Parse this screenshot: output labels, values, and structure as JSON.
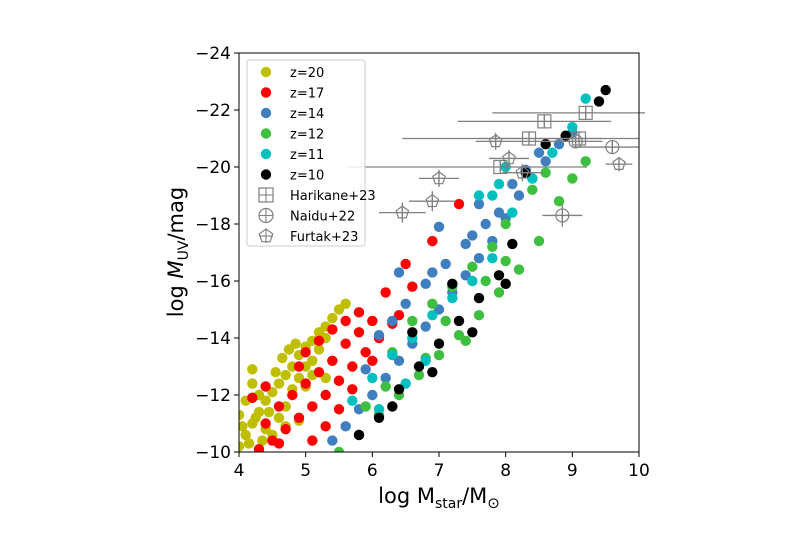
{
  "chart_data": {
    "type": "scatter",
    "xlabel": "log M",
    "xlabel_sub": "star",
    "xlabel_tail": "/M",
    "xlabel_sun": "⊙",
    "ylabel": "log ",
    "ylabel_sym": "M",
    "ylabel_sub": "UV",
    "ylabel_tail": "/mag",
    "xlim": [
      4,
      10
    ],
    "ylim": [
      -10,
      -24
    ],
    "y_inverted": true,
    "grid": false,
    "legend_position": "upper-left",
    "xticks": [
      "4",
      "5",
      "6",
      "7",
      "8",
      "9",
      "10"
    ],
    "xtick_values": [
      4,
      5,
      6,
      7,
      8,
      9,
      10
    ],
    "yticks": [
      "−10",
      "−12",
      "−14",
      "−16",
      "−18",
      "−20",
      "−22",
      "−24"
    ],
    "ytick_values": [
      -10,
      -12,
      -14,
      -16,
      -18,
      -20,
      -22,
      -24
    ],
    "simulated_series": [
      {
        "name": "z=20",
        "color": "#bfbf00",
        "points": [
          [
            4.0,
            -10.2
          ],
          [
            4.1,
            -10.6
          ],
          [
            4.2,
            -11.0
          ],
          [
            4.3,
            -11.4
          ],
          [
            4.4,
            -11.8
          ],
          [
            4.5,
            -12.1
          ],
          [
            4.6,
            -12.4
          ],
          [
            4.7,
            -12.7
          ],
          [
            4.8,
            -13.0
          ],
          [
            4.9,
            -13.4
          ],
          [
            5.0,
            -13.7
          ],
          [
            5.1,
            -13.9
          ],
          [
            5.2,
            -14.2
          ],
          [
            5.3,
            -14.4
          ],
          [
            5.4,
            -14.7
          ],
          [
            5.5,
            -15.0
          ],
          [
            5.6,
            -15.2
          ],
          [
            4.0,
            -11.3
          ],
          [
            4.1,
            -11.8
          ],
          [
            4.2,
            -12.4
          ],
          [
            4.3,
            -12.0
          ],
          [
            4.4,
            -10.8
          ],
          [
            4.5,
            -10.6
          ],
          [
            4.6,
            -11.2
          ],
          [
            4.7,
            -11.6
          ],
          [
            4.8,
            -12.2
          ],
          [
            4.9,
            -12.6
          ],
          [
            5.0,
            -13.0
          ],
          [
            5.1,
            -13.2
          ],
          [
            5.2,
            -13.6
          ],
          [
            5.3,
            -14.0
          ],
          [
            4.15,
            -10.3
          ],
          [
            4.35,
            -10.4
          ],
          [
            4.55,
            -12.8
          ],
          [
            4.65,
            -13.3
          ],
          [
            4.75,
            -13.6
          ],
          [
            4.85,
            -13.8
          ],
          [
            4.05,
            -10.9
          ],
          [
            4.25,
            -11.2
          ],
          [
            4.45,
            -11.4
          ],
          [
            4.7,
            -10.9
          ],
          [
            5.0,
            -12.3
          ],
          [
            5.1,
            -12.7
          ],
          [
            4.2,
            -12.9
          ],
          [
            5.3,
            -12.6
          ],
          [
            4.9,
            -11.1
          ]
        ]
      },
      {
        "name": "z=17",
        "color": "#ff0000",
        "points": [
          [
            4.3,
            -10.1
          ],
          [
            4.5,
            -10.4
          ],
          [
            4.7,
            -10.8
          ],
          [
            4.9,
            -11.2
          ],
          [
            5.1,
            -11.6
          ],
          [
            5.3,
            -12.0
          ],
          [
            5.5,
            -12.5
          ],
          [
            5.7,
            -13.0
          ],
          [
            5.9,
            -13.5
          ],
          [
            6.1,
            -14.0
          ],
          [
            6.3,
            -14.5
          ],
          [
            4.6,
            -11.6
          ],
          [
            4.8,
            -12.0
          ],
          [
            5.0,
            -12.4
          ],
          [
            5.2,
            -12.8
          ],
          [
            5.4,
            -13.2
          ],
          [
            5.6,
            -13.8
          ],
          [
            5.8,
            -14.2
          ],
          [
            6.0,
            -14.6
          ],
          [
            4.4,
            -11.0
          ],
          [
            4.9,
            -13.0
          ],
          [
            5.0,
            -13.5
          ],
          [
            5.2,
            -13.9
          ],
          [
            5.4,
            -14.3
          ],
          [
            5.6,
            -14.6
          ],
          [
            5.8,
            -14.9
          ],
          [
            6.2,
            -15.6
          ],
          [
            6.5,
            -16.6
          ],
          [
            6.9,
            -17.4
          ],
          [
            7.3,
            -18.7
          ],
          [
            4.2,
            -11.9
          ],
          [
            4.4,
            -12.3
          ],
          [
            4.6,
            -10.3
          ],
          [
            5.1,
            -10.4
          ],
          [
            5.3,
            -10.9
          ],
          [
            5.5,
            -11.5
          ],
          [
            5.7,
            -12.2
          ],
          [
            6.0,
            -13.2
          ],
          [
            6.4,
            -14.8
          ],
          [
            6.6,
            -15.8
          ]
        ]
      },
      {
        "name": "z=14",
        "color": "#3f7fbf",
        "points": [
          [
            5.4,
            -10.4
          ],
          [
            5.6,
            -10.9
          ],
          [
            5.8,
            -11.5
          ],
          [
            6.0,
            -12.0
          ],
          [
            6.2,
            -12.6
          ],
          [
            6.4,
            -13.2
          ],
          [
            6.6,
            -13.8
          ],
          [
            6.8,
            -14.4
          ],
          [
            7.0,
            -15.0
          ],
          [
            7.2,
            -15.6
          ],
          [
            7.4,
            -16.2
          ],
          [
            7.6,
            -16.8
          ],
          [
            7.8,
            -17.4
          ],
          [
            8.0,
            -18.2
          ],
          [
            8.2,
            -19.0
          ],
          [
            8.4,
            -19.6
          ],
          [
            8.6,
            -20.2
          ],
          [
            8.8,
            -20.8
          ],
          [
            9.0,
            -21.2
          ],
          [
            6.5,
            -15.2
          ],
          [
            6.8,
            -15.9
          ],
          [
            7.1,
            -16.6
          ],
          [
            7.4,
            -17.3
          ],
          [
            7.7,
            -18.0
          ],
          [
            6.1,
            -14.1
          ],
          [
            6.4,
            -16.3
          ],
          [
            7.0,
            -17.9
          ],
          [
            7.6,
            -18.7
          ],
          [
            8.1,
            -19.4
          ],
          [
            8.3,
            -19.9
          ],
          [
            5.9,
            -12.9
          ],
          [
            6.3,
            -14.6
          ],
          [
            6.9,
            -16.3
          ],
          [
            7.5,
            -17.6
          ],
          [
            7.9,
            -18.4
          ],
          [
            8.5,
            -20.5
          ]
        ]
      },
      {
        "name": "z=12",
        "color": "#3fbf3f",
        "points": [
          [
            5.5,
            -10.0
          ],
          [
            5.8,
            -10.6
          ],
          [
            6.1,
            -11.3
          ],
          [
            6.4,
            -12.0
          ],
          [
            6.7,
            -12.7
          ],
          [
            7.0,
            -13.4
          ],
          [
            7.3,
            -14.1
          ],
          [
            7.6,
            -14.8
          ],
          [
            7.9,
            -15.6
          ],
          [
            8.2,
            -16.4
          ],
          [
            8.5,
            -17.4
          ],
          [
            8.8,
            -18.8
          ],
          [
            9.0,
            -19.6
          ],
          [
            9.2,
            -20.2
          ],
          [
            6.6,
            -14.6
          ],
          [
            6.9,
            -15.2
          ],
          [
            7.2,
            -15.8
          ],
          [
            7.5,
            -16.5
          ],
          [
            7.8,
            -17.2
          ],
          [
            8.0,
            -18.0
          ],
          [
            6.3,
            -13.5
          ],
          [
            7.1,
            -14.6
          ],
          [
            7.7,
            -16.0
          ],
          [
            8.4,
            -19.2
          ],
          [
            8.6,
            -19.8
          ],
          [
            5.9,
            -11.6
          ],
          [
            6.2,
            -12.3
          ],
          [
            6.8,
            -13.3
          ],
          [
            7.4,
            -13.9
          ],
          [
            8.0,
            -16.7
          ]
        ]
      },
      {
        "name": "z=11",
        "color": "#00bfbf",
        "points": [
          [
            5.7,
            -11.8
          ],
          [
            6.0,
            -12.6
          ],
          [
            6.3,
            -13.4
          ],
          [
            6.6,
            -14.0
          ],
          [
            6.9,
            -14.8
          ],
          [
            7.2,
            -15.4
          ],
          [
            7.5,
            -16.0
          ],
          [
            7.8,
            -16.8
          ],
          [
            8.1,
            -18.4
          ],
          [
            8.4,
            -19.6
          ],
          [
            8.7,
            -20.5
          ],
          [
            9.0,
            -21.4
          ],
          [
            9.2,
            -22.4
          ],
          [
            6.5,
            -12.4
          ],
          [
            7.8,
            -19.0
          ],
          [
            7.9,
            -19.4
          ],
          [
            8.0,
            -20.0
          ],
          [
            7.6,
            -19.0
          ],
          [
            6.1,
            -11.5
          ],
          [
            6.8,
            -13.2
          ]
        ]
      },
      {
        "name": "z=10",
        "color": "#000000",
        "points": [
          [
            5.8,
            -10.6
          ],
          [
            6.1,
            -11.2
          ],
          [
            6.4,
            -12.2
          ],
          [
            6.7,
            -13.0
          ],
          [
            7.0,
            -13.8
          ],
          [
            7.3,
            -14.6
          ],
          [
            7.6,
            -15.4
          ],
          [
            7.9,
            -16.2
          ],
          [
            8.1,
            -17.3
          ],
          [
            8.3,
            -19.8
          ],
          [
            8.6,
            -20.8
          ],
          [
            8.9,
            -21.1
          ],
          [
            9.4,
            -22.3
          ],
          [
            9.5,
            -22.7
          ],
          [
            6.3,
            -11.6
          ],
          [
            6.9,
            -12.8
          ],
          [
            7.5,
            -14.2
          ],
          [
            8.0,
            -15.9
          ],
          [
            7.2,
            -15.9
          ],
          [
            6.6,
            -14.2
          ]
        ]
      }
    ],
    "observed_series": [
      {
        "name": "Harikane+23",
        "marker": "square-plus",
        "color": "#808080",
        "points": [
          {
            "x": 8.35,
            "y": -21.0,
            "xerr": [
              1.9,
              1.1
            ],
            "yerr": 0.25
          },
          {
            "x": 8.58,
            "y": -21.6,
            "xerr": [
              1.3,
              1.0
            ],
            "yerr": 0.25
          },
          {
            "x": 9.2,
            "y": -21.9,
            "xerr": [
              1.4,
              0.9
            ],
            "yerr": 0.25
          },
          {
            "x": 7.92,
            "y": -20.0,
            "xerr": [
              2.3,
              1.3
            ],
            "yerr": 0.25
          },
          {
            "x": 9.1,
            "y": -21.0,
            "xerr": [
              1.5,
              0.9
            ],
            "yerr": 0.25
          }
        ]
      },
      {
        "name": "Naidu+22",
        "marker": "circle-plus",
        "color": "#808080",
        "points": [
          {
            "x": 9.05,
            "y": -20.9,
            "xerr": [
              0.9,
              0.4
            ],
            "yerr": 0.25
          },
          {
            "x": 9.6,
            "y": -20.7,
            "xerr": [
              0.6,
              0.4
            ],
            "yerr": 0.25
          },
          {
            "x": 8.85,
            "y": -18.3,
            "xerr": [
              0.3,
              0.3
            ],
            "yerr": 0.4
          }
        ]
      },
      {
        "name": "Furtak+23",
        "marker": "pentagon-plus",
        "color": "#808080",
        "points": [
          {
            "x": 6.45,
            "y": -18.4,
            "xerr": [
              0.35,
              0.35
            ],
            "yerr": 0.35
          },
          {
            "x": 6.9,
            "y": -18.8,
            "xerr": [
              0.35,
              0.35
            ],
            "yerr": 0.35
          },
          {
            "x": 7.0,
            "y": -19.6,
            "xerr": [
              0.3,
              0.3
            ],
            "yerr": 0.3
          },
          {
            "x": 7.85,
            "y": -20.9,
            "xerr": [
              0.3,
              0.3
            ],
            "yerr": 0.3
          },
          {
            "x": 8.05,
            "y": -20.3,
            "xerr": [
              0.3,
              0.3
            ],
            "yerr": 0.3
          },
          {
            "x": 8.25,
            "y": -19.8,
            "xerr": [
              0.3,
              0.3
            ],
            "yerr": 0.3
          },
          {
            "x": 9.7,
            "y": -20.1,
            "xerr": [
              0.2,
              0.2
            ],
            "yerr": 0.25
          }
        ]
      }
    ],
    "legend": [
      {
        "label": "z=20",
        "kind": "dot",
        "color": "#bfbf00"
      },
      {
        "label": "z=17",
        "kind": "dot",
        "color": "#ff0000"
      },
      {
        "label": "z=14",
        "kind": "dot",
        "color": "#3f7fbf"
      },
      {
        "label": "z=12",
        "kind": "dot",
        "color": "#3fbf3f"
      },
      {
        "label": "z=11",
        "kind": "dot",
        "color": "#00bfbf"
      },
      {
        "label": "z=10",
        "kind": "dot",
        "color": "#000000"
      },
      {
        "label": "Harikane+23",
        "kind": "square-plus",
        "color": "#808080"
      },
      {
        "label": "Naidu+22",
        "kind": "circle-plus",
        "color": "#808080"
      },
      {
        "label": "Furtak+23",
        "kind": "pentagon-plus",
        "color": "#808080"
      }
    ]
  }
}
